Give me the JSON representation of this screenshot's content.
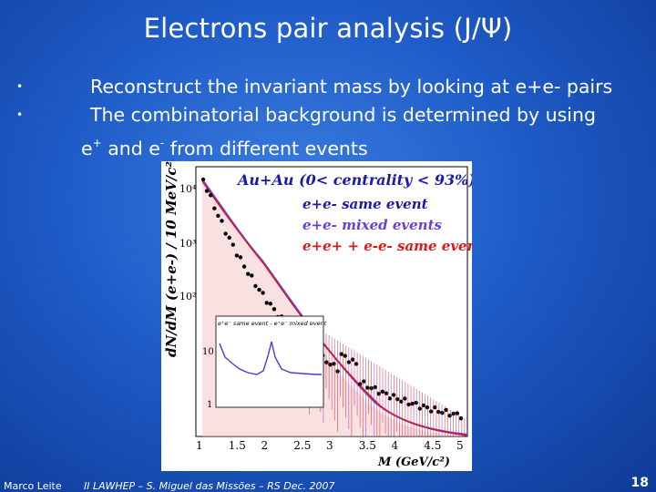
{
  "slide": {
    "title": "Electrons pair analysis (J/Ψ)",
    "bullets": [
      "Reconstruct the invariant mass by looking at e+e- pairs",
      "The combinatorial background is determined by using"
    ],
    "bullet2_line2": {
      "prefix": "e",
      "sup1": "+",
      "mid": " and e",
      "sup2": "-",
      "suffix": " from different events"
    }
  },
  "figure": {
    "title": "Au+Au (0< centrality < 93%)",
    "legend": [
      {
        "label": "e+e- same event",
        "color": "#1a1aa8"
      },
      {
        "label": "e+e- mixed events",
        "color": "#6a3fd8"
      },
      {
        "label": "e+e+ + e-e- same event",
        "color": "#e01515"
      }
    ],
    "ylabel": "dN/dM (e+e-) / 10 MeV/c²",
    "xlabel": "M (GeV/c²)",
    "x_ticks": [
      "1",
      "1.5",
      "2",
      "2.5",
      "3",
      "3.5",
      "4",
      "4.5",
      "5"
    ],
    "y_ticks": [
      "10⁴",
      "10³",
      "10²",
      "10",
      "1"
    ],
    "inset_title": "e⁺e⁻ same event - e⁺e⁻ mixed event",
    "inset_y_ticks": [
      "10",
      "1"
    ]
  },
  "footer": {
    "author": "Marco Leite",
    "event": "II LAWHEP – S. Miguel das Missões – RS   Dec. 2007",
    "page": "18"
  }
}
